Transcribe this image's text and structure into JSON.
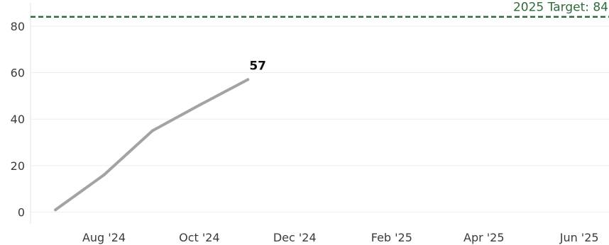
{
  "chart_data": {
    "type": "line",
    "title": "",
    "xlabel": "",
    "ylabel": "",
    "x": [
      "2024-07-01",
      "2024-08-01",
      "2024-09-01",
      "2024-10-01",
      "2024-11-01"
    ],
    "y": [
      1,
      16,
      35,
      46,
      57
    ],
    "end_label": "57",
    "ylim": [
      -5,
      90
    ],
    "xlim": [
      "2024-06-15",
      "2025-06-20"
    ],
    "y_ticks": [
      0,
      20,
      40,
      60,
      80
    ],
    "y_tick_labels": [
      "0",
      "20",
      "40",
      "60",
      "80"
    ],
    "x_ticks": [
      "2024-08-01",
      "2024-10-01",
      "2024-12-01",
      "2025-02-01",
      "2025-04-01",
      "2025-06-01"
    ],
    "x_tick_labels": [
      "Aug '24",
      "Oct '24",
      "Dec '24",
      "Feb '25",
      "Apr '25",
      "Jun '25"
    ],
    "grid": {
      "horizontal": true,
      "vertical": false
    },
    "reference_line": {
      "value": 84,
      "label": "2025 Target: 84",
      "style": "dashed"
    },
    "colors": {
      "line": "#a3a3a3",
      "target": "#2e6b3a",
      "grid": "#eeeeee",
      "axis_text": "#3b3b3b"
    }
  }
}
